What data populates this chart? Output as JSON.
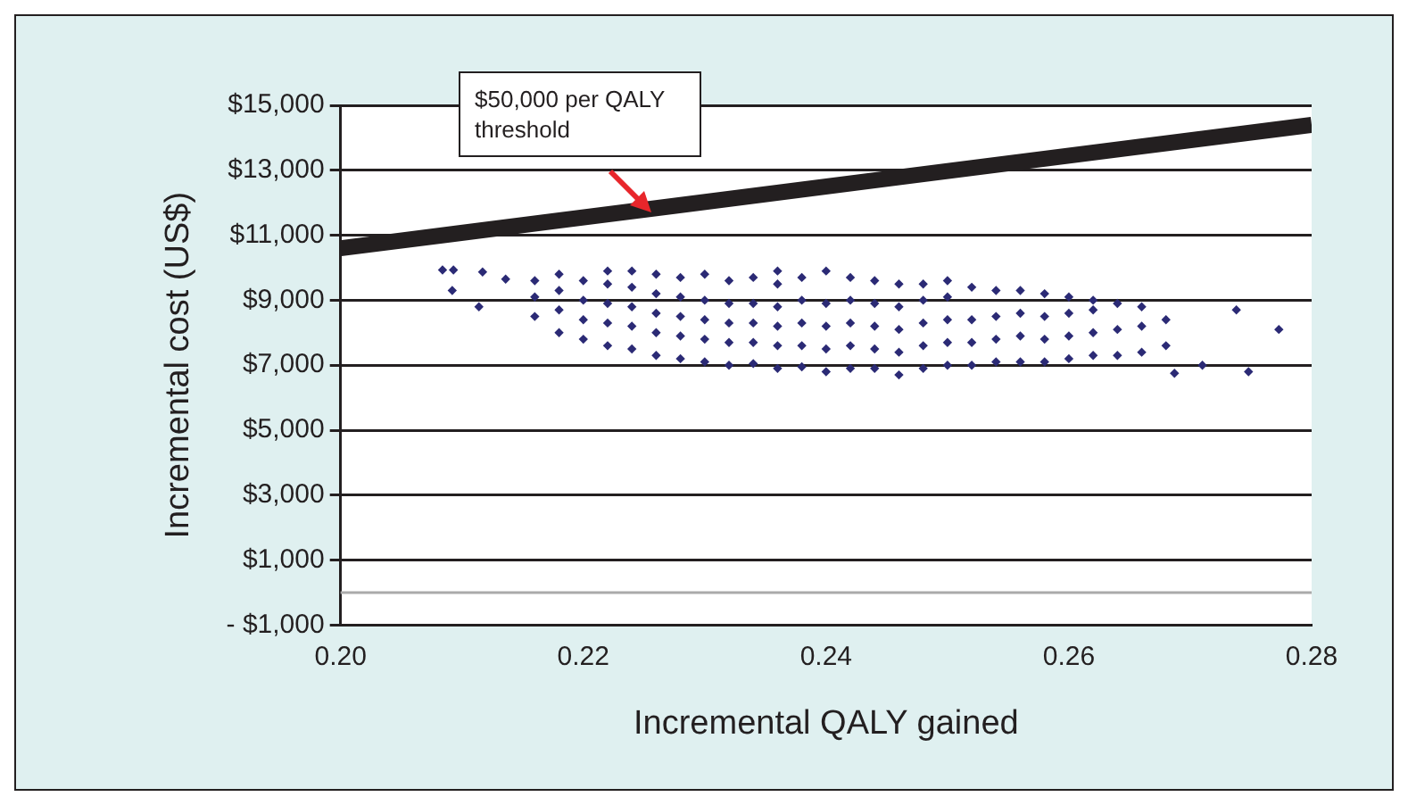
{
  "chart_data": {
    "type": "scatter",
    "xlabel": "Incremental QALY gained",
    "ylabel": "Incremental cost (US$)",
    "xlim": [
      0.2,
      0.28
    ],
    "xticks": [
      {
        "value": 0.2,
        "label": "0.20"
      },
      {
        "value": 0.22,
        "label": "0.22"
      },
      {
        "value": 0.24,
        "label": "0.24"
      },
      {
        "value": 0.26,
        "label": "0.26"
      },
      {
        "value": 0.28,
        "label": "0.28"
      }
    ],
    "ylim": [
      -1000,
      15000
    ],
    "yticks": [
      {
        "value": -1000,
        "label": "- $1,000"
      },
      {
        "value": 1000,
        "label": "$1,000"
      },
      {
        "value": 3000,
        "label": "$3,000"
      },
      {
        "value": 5000,
        "label": "$5,000"
      },
      {
        "value": 7000,
        "label": "$7,000"
      },
      {
        "value": 9000,
        "label": "$9,000"
      },
      {
        "value": 11000,
        "label": "$11,000"
      },
      {
        "value": 13000,
        "label": "$13,000"
      },
      {
        "value": 15000,
        "label": "$15,000"
      }
    ],
    "grid": "y",
    "legend": false,
    "marker": "diamond",
    "ref_lines": [
      {
        "axis": "y",
        "value": 0,
        "color": "#aaaaaa"
      }
    ],
    "annotations": [
      "$50,000 per QALY threshold"
    ],
    "series": [
      {
        "type": "line",
        "color": "#231f20",
        "marker": "none",
        "x": [
          0.2,
          0.28
        ],
        "values": [
          10600,
          14400
        ]
      },
      {
        "color": "#2b2a75",
        "x": [
          0.2084,
          0.2093,
          0.2117,
          0.2092,
          0.2114,
          0.2136,
          0.216,
          0.216,
          0.216,
          0.218,
          0.218,
          0.218,
          0.218,
          0.22,
          0.22,
          0.22,
          0.22,
          0.222,
          0.222,
          0.222,
          0.222,
          0.222,
          0.224,
          0.224,
          0.224,
          0.224,
          0.224,
          0.226,
          0.226,
          0.226,
          0.226,
          0.226,
          0.228,
          0.228,
          0.228,
          0.228,
          0.228,
          0.23,
          0.23,
          0.23,
          0.23,
          0.23,
          0.232,
          0.232,
          0.232,
          0.232,
          0.232,
          0.234,
          0.234,
          0.234,
          0.234,
          0.234,
          0.236,
          0.236,
          0.236,
          0.236,
          0.236,
          0.236,
          0.238,
          0.238,
          0.238,
          0.238,
          0.238,
          0.24,
          0.24,
          0.24,
          0.24,
          0.24,
          0.242,
          0.242,
          0.242,
          0.242,
          0.242,
          0.244,
          0.244,
          0.244,
          0.244,
          0.244,
          0.246,
          0.246,
          0.246,
          0.246,
          0.246,
          0.248,
          0.248,
          0.248,
          0.248,
          0.248,
          0.25,
          0.25,
          0.25,
          0.25,
          0.25,
          0.252,
          0.252,
          0.252,
          0.252,
          0.254,
          0.254,
          0.254,
          0.254,
          0.256,
          0.256,
          0.256,
          0.256,
          0.258,
          0.258,
          0.258,
          0.258,
          0.26,
          0.26,
          0.26,
          0.26,
          0.262,
          0.262,
          0.262,
          0.262,
          0.264,
          0.264,
          0.264,
          0.266,
          0.266,
          0.266,
          0.268,
          0.268,
          0.2687,
          0.271,
          0.2738,
          0.2748,
          0.2773
        ],
        "values": [
          9930,
          9930,
          9870,
          9300,
          8800,
          9650,
          8500,
          9100,
          9600,
          8000,
          8700,
          9300,
          9800,
          7800,
          8400,
          9000,
          9600,
          7600,
          8300,
          8900,
          9500,
          9900,
          7500,
          8200,
          8800,
          9400,
          9900,
          7300,
          8000,
          8600,
          9200,
          9800,
          7200,
          7900,
          8500,
          9100,
          9700,
          7100,
          7800,
          8400,
          9000,
          9800,
          7000,
          7700,
          8300,
          8900,
          9600,
          7050,
          7700,
          8300,
          8900,
          9700,
          6900,
          7600,
          8200,
          8800,
          9500,
          9900,
          6950,
          7600,
          8300,
          9000,
          9700,
          6800,
          7500,
          8200,
          8900,
          9900,
          6900,
          7600,
          8300,
          9000,
          9700,
          6900,
          7500,
          8200,
          8900,
          9600,
          6700,
          7400,
          8100,
          8800,
          9500,
          6900,
          7600,
          8300,
          9000,
          9500,
          7000,
          7700,
          8400,
          9100,
          9600,
          7000,
          7700,
          8400,
          9400,
          7100,
          7800,
          8500,
          9300,
          7100,
          7900,
          8600,
          9300,
          7100,
          7800,
          8500,
          9200,
          7200,
          7900,
          8600,
          9100,
          7300,
          8000,
          8700,
          9000,
          7300,
          8100,
          8900,
          7400,
          8200,
          8800,
          7600,
          8400,
          6750,
          7000,
          8700,
          6800,
          8100
        ]
      }
    ]
  }
}
